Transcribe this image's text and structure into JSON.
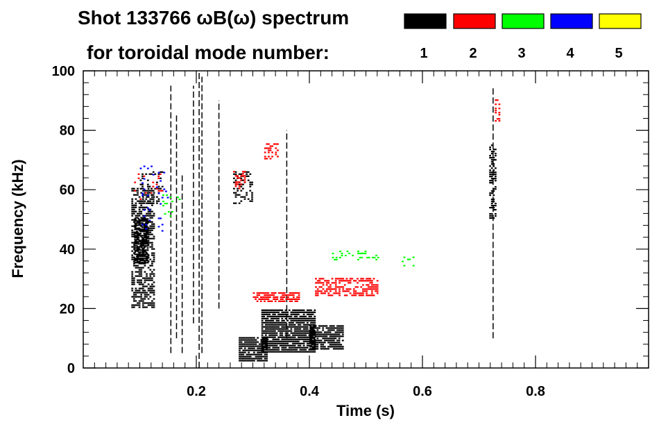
{
  "chart_data": {
    "type": "scatter",
    "title_line1": "Shot 133766 ωB(ω) spectrum",
    "title_line2": "for toroidal mode number:",
    "xlabel": "Time (s)",
    "ylabel": "Frequency (kHz)",
    "xlim": [
      0.0,
      1.0
    ],
    "ylim": [
      0,
      100
    ],
    "xticks": [
      0.2,
      0.4,
      0.6,
      0.8
    ],
    "xtick_labels": [
      "0.2",
      "0.4",
      "0.6",
      "0.8"
    ],
    "yticks": [
      0,
      20,
      40,
      60,
      80,
      100
    ],
    "ytick_labels": [
      "0",
      "20",
      "40",
      "60",
      "80",
      "100"
    ],
    "legend": [
      {
        "label": "1",
        "color": "#000000"
      },
      {
        "label": "2",
        "color": "#ff0000"
      },
      {
        "label": "3",
        "color": "#00ff00"
      },
      {
        "label": "4",
        "color": "#0000ff"
      },
      {
        "label": "5",
        "color": "#ffff00"
      }
    ],
    "series": [
      {
        "name": "1",
        "color": "#000000",
        "blobs": [
          {
            "t": [
              0.085,
              0.125
            ],
            "f": [
              20,
              60
            ],
            "density": 0.6
          },
          {
            "t": [
              0.09,
              0.115
            ],
            "f": [
              35,
              50
            ],
            "density": 0.9
          },
          {
            "t": [
              0.1,
              0.14
            ],
            "f": [
              55,
              66
            ],
            "density": 0.25
          },
          {
            "t": [
              0.275,
              0.325
            ],
            "f": [
              2,
              10
            ],
            "density": 0.85
          },
          {
            "t": [
              0.315,
              0.41
            ],
            "f": [
              5,
              19
            ],
            "density": 0.85
          },
          {
            "t": [
              0.4,
              0.46
            ],
            "f": [
              6,
              14
            ],
            "density": 0.8
          },
          {
            "t": [
              0.265,
              0.3
            ],
            "f": [
              55,
              66
            ],
            "density": 0.35
          },
          {
            "t": [
              0.718,
              0.728
            ],
            "f": [
              50,
              75
            ],
            "density": 0.5
          }
        ],
        "lines": [
          {
            "t": 0.155,
            "f": [
              5,
              95
            ]
          },
          {
            "t": 0.165,
            "f": [
              10,
              85
            ]
          },
          {
            "t": 0.175,
            "f": [
              5,
              65
            ]
          },
          {
            "t": 0.195,
            "f": [
              15,
              95
            ]
          },
          {
            "t": 0.205,
            "f": [
              0,
              100
            ]
          },
          {
            "t": 0.21,
            "f": [
              5,
              98
            ]
          },
          {
            "t": 0.24,
            "f": [
              20,
              90
            ]
          },
          {
            "t": 0.36,
            "f": [
              10,
              80
            ]
          },
          {
            "t": 0.725,
            "f": [
              10,
              95
            ]
          }
        ]
      },
      {
        "name": "2",
        "color": "#ff0000",
        "blobs": [
          {
            "t": [
              0.3,
              0.38
            ],
            "f": [
              22,
              25
            ],
            "density": 0.7
          },
          {
            "t": [
              0.41,
              0.52
            ],
            "f": [
              24,
              30
            ],
            "density": 0.55
          },
          {
            "t": [
              0.265,
              0.29
            ],
            "f": [
              60,
              66
            ],
            "density": 0.3
          },
          {
            "t": [
              0.32,
              0.345
            ],
            "f": [
              70,
              75
            ],
            "density": 0.3
          },
          {
            "t": [
              0.728,
              0.735
            ],
            "f": [
              82,
              90
            ],
            "density": 0.4
          },
          {
            "t": [
              0.09,
              0.14
            ],
            "f": [
              55,
              65
            ],
            "density": 0.1
          }
        ],
        "lines": []
      },
      {
        "name": "3",
        "color": "#00ff00",
        "blobs": [
          {
            "t": [
              0.44,
              0.52
            ],
            "f": [
              36,
              39
            ],
            "density": 0.2
          },
          {
            "t": [
              0.56,
              0.585
            ],
            "f": [
              34,
              37
            ],
            "density": 0.25
          },
          {
            "t": [
              0.14,
              0.17
            ],
            "f": [
              50,
              58
            ],
            "density": 0.08
          }
        ],
        "lines": []
      },
      {
        "name": "4",
        "color": "#0000ff",
        "blobs": [
          {
            "t": [
              0.1,
              0.15
            ],
            "f": [
              45,
              68
            ],
            "density": 0.05
          }
        ],
        "lines": []
      }
    ]
  }
}
